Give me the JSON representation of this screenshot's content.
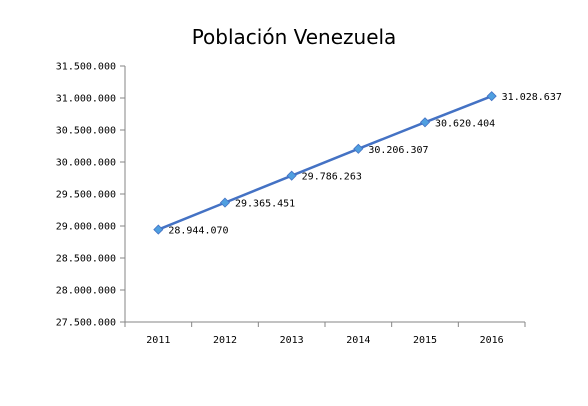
{
  "chart_data": {
    "type": "line",
    "title": "Población Venezuela",
    "xlabel": "",
    "ylabel": "",
    "categories": [
      "2011",
      "2012",
      "2013",
      "2014",
      "2015",
      "2016"
    ],
    "series": [
      {
        "values": [
          28944070,
          29365451,
          29786263,
          30206307,
          30620404,
          31028637
        ],
        "data_labels": [
          "28.944.070",
          "29.365.451",
          "29.786.263",
          "30.206.307",
          "30.620.404",
          "31.028.637"
        ],
        "color": "#4472C4",
        "marker": "diamond",
        "marker_color": "#4F9FE0"
      }
    ],
    "ylim": [
      27500000,
      31500000
    ],
    "y_ticks": [
      27500000,
      28000000,
      28500000,
      29000000,
      29500000,
      30000000,
      30500000,
      31000000,
      31500000
    ],
    "y_tick_labels": [
      "27.500.000",
      "28.000.000",
      "28.500.000",
      "29.000.000",
      "29.500.000",
      "30.000.000",
      "30.500.000",
      "31.000.000",
      "31.500.000"
    ],
    "grid": false,
    "legend": "none"
  }
}
